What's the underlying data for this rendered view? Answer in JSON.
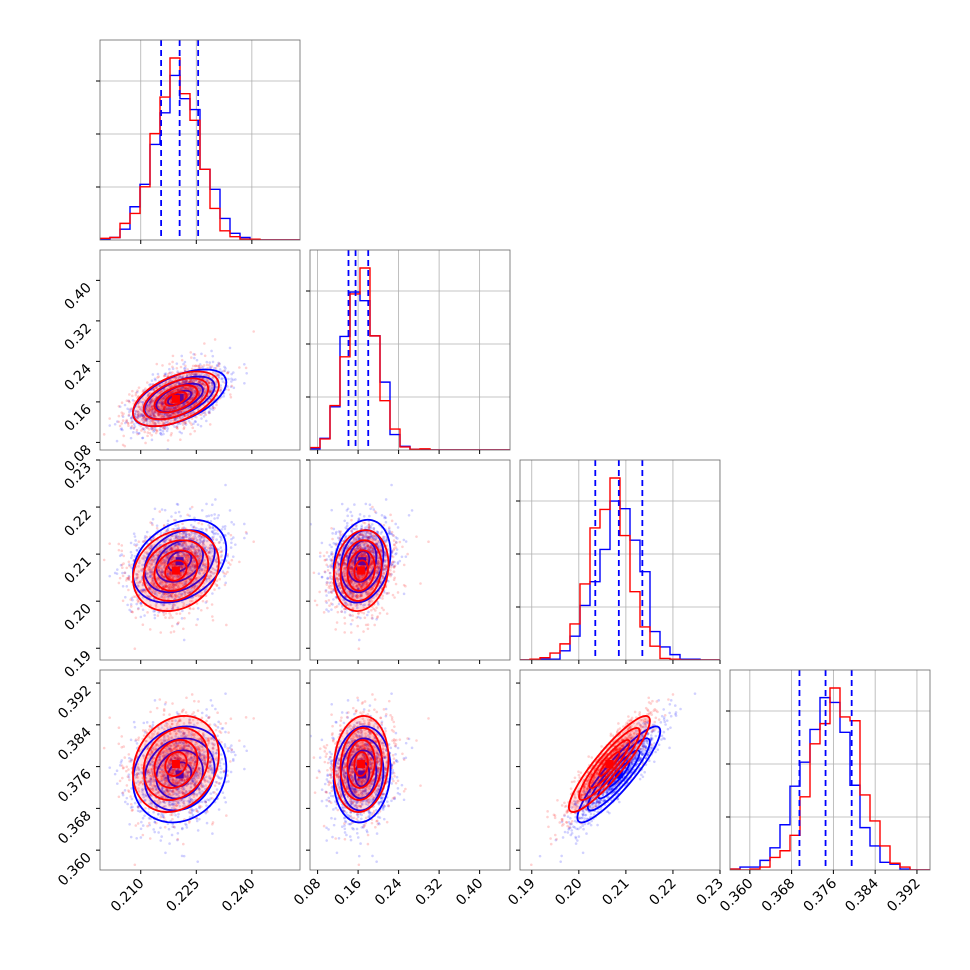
{
  "chart_data": {
    "type": "corner",
    "params": [
      {
        "range": [
          0.199,
          0.253
        ],
        "ticks": [
          "0.210",
          "0.225",
          "0.240"
        ],
        "tick_values": [
          0.21,
          0.225,
          0.24
        ]
      },
      {
        "range": [
          0.065,
          0.46
        ],
        "ticks": [
          "0.08",
          "0.16",
          "0.24",
          "0.32",
          "0.40"
        ],
        "tick_values": [
          0.08,
          0.16,
          0.24,
          0.32,
          0.4
        ]
      },
      {
        "range": [
          0.1875,
          0.23
        ],
        "ticks": [
          "0.19",
          "0.20",
          "0.21",
          "0.22",
          "0.23"
        ],
        "tick_values": [
          0.19,
          0.2,
          0.21,
          0.22,
          0.23
        ]
      },
      {
        "range": [
          0.3562,
          0.3945
        ],
        "ticks": [
          "0.360",
          "0.368",
          "0.376",
          "0.384",
          "0.392"
        ],
        "tick_values": [
          0.36,
          0.368,
          0.376,
          0.384,
          0.392
        ]
      }
    ],
    "series": [
      {
        "color": "#0000ff",
        "mean": [
          0.2205,
          0.168,
          0.2085,
          0.3745
        ],
        "sd": [
          0.0063,
          0.028,
          0.0044,
          0.0046
        ],
        "corr": [
          [
            1,
            0.55,
            0.3,
            0.15
          ],
          [
            0.55,
            1,
            0.2,
            0.1
          ],
          [
            0.3,
            0.2,
            1,
            0.9
          ],
          [
            0.15,
            0.1,
            0.9,
            1
          ]
        ]
      },
      {
        "color": "#ff0000",
        "mean": [
          0.2195,
          0.166,
          0.2065,
          0.3765
        ],
        "sd": [
          0.0058,
          0.027,
          0.0043,
          0.0046
        ],
        "corr": [
          [
            1,
            0.5,
            0.2,
            0.2
          ],
          [
            0.5,
            1,
            0.15,
            0.1
          ],
          [
            0.2,
            0.15,
            1,
            0.9
          ],
          [
            0.2,
            0.1,
            0.9,
            1
          ]
        ]
      }
    ],
    "quantiles": [
      [
        0.2155,
        0.2205,
        0.2255
      ],
      [
        0.141,
        0.155,
        0.18
      ],
      [
        0.2035,
        0.2085,
        0.2135
      ],
      [
        0.3695,
        0.3745,
        0.3795
      ]
    ],
    "quantile_line_color": "#0000ff",
    "grid": true
  }
}
